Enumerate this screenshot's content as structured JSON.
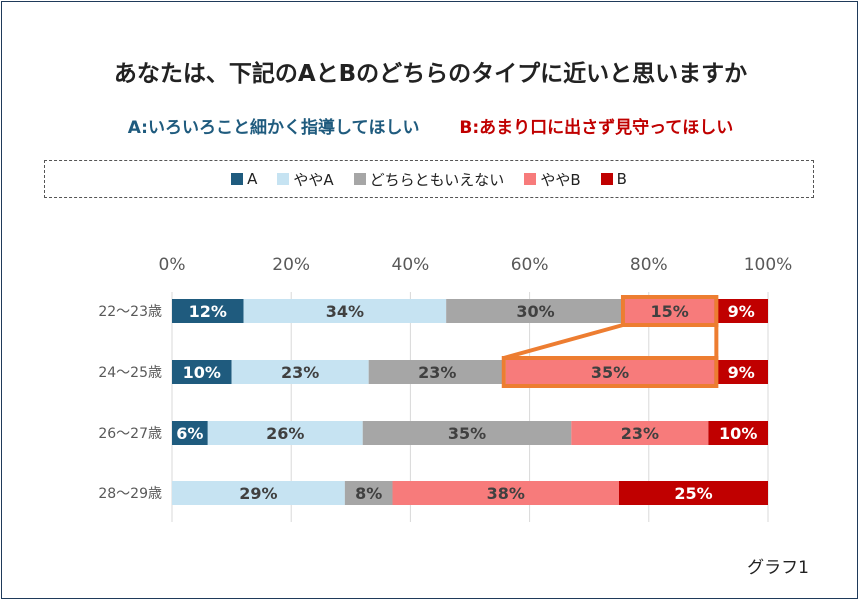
{
  "title": "あなたは、下記のAとBのどちらのタイプに近いと思いますか",
  "subtitle": {
    "option_a": "A:いろいろこと細かく指導してほしい",
    "option_b": "B:あまり口に出さず見守ってほしい"
  },
  "footer": "グラフ1",
  "colors": {
    "A": "#1f5b7e",
    "ややA": "#c6e3f2",
    "どちらともいえない": "#a6a6a6",
    "ややB": "#f77b7b",
    "B": "#c00000",
    "highlight": "#ed7d31"
  },
  "chart_data": {
    "type": "bar",
    "orientation": "horizontal",
    "stacked": true,
    "categories": [
      "22～23歳",
      "24～25歳",
      "26～27歳",
      "28～29歳"
    ],
    "series": [
      {
        "name": "A",
        "values": [
          12,
          10,
          6,
          0
        ]
      },
      {
        "name": "ややA",
        "values": [
          34,
          23,
          26,
          29
        ]
      },
      {
        "name": "どちらともいえない",
        "values": [
          30,
          23,
          35,
          8
        ]
      },
      {
        "name": "ややB",
        "values": [
          15,
          35,
          23,
          38
        ]
      },
      {
        "name": "B",
        "values": [
          9,
          9,
          10,
          25
        ]
      }
    ],
    "xlim": [
      0,
      100
    ],
    "xticks": [
      "0%",
      "20%",
      "40%",
      "60%",
      "80%",
      "100%"
    ],
    "legend_position": "top",
    "grid": true,
    "highlight": {
      "series": "ややB",
      "categories": [
        "22～23歳",
        "24～25歳"
      ]
    }
  }
}
